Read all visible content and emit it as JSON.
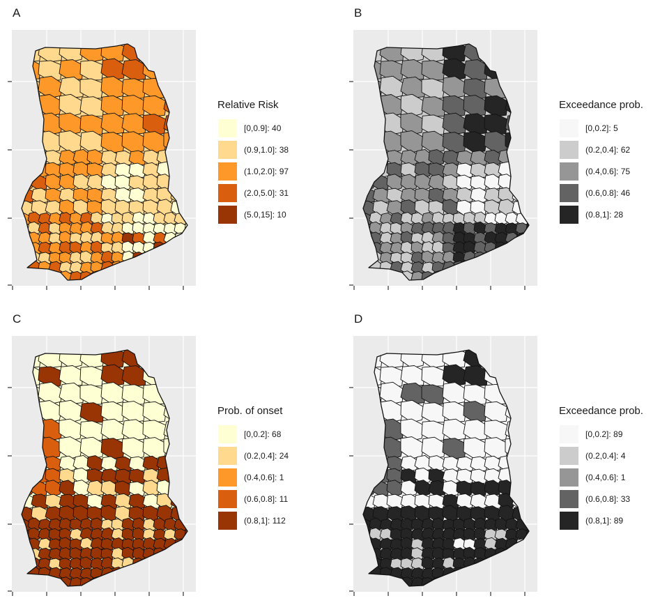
{
  "panels": [
    {
      "letter": "A",
      "legend_title": "Relative Risk",
      "palette": [
        "#ffffd4",
        "#fed98e",
        "#fe9929",
        "#d95f0e",
        "#993404"
      ],
      "items": [
        {
          "label": "[0,0.9]: 40",
          "color": "#ffffd4"
        },
        {
          "label": "(0.9,1.0]: 38",
          "color": "#fed98e"
        },
        {
          "label": "(1.0,2.0]: 97",
          "color": "#fe9929"
        },
        {
          "label": "(2.0,5.0]: 31",
          "color": "#d95f0e"
        },
        {
          "label": "(5.0,15]: 10",
          "color": "#993404"
        }
      ]
    },
    {
      "letter": "B",
      "legend_title": "Exceedance prob.",
      "palette": [
        "#f7f7f7",
        "#cccccc",
        "#969696",
        "#636363",
        "#252525"
      ],
      "items": [
        {
          "label": "[0,0.2]: 5",
          "color": "#f7f7f7"
        },
        {
          "label": "(0.2,0.4]: 62",
          "color": "#cccccc"
        },
        {
          "label": "(0.4,0.6]: 75",
          "color": "#969696"
        },
        {
          "label": "(0.6,0.8]: 46",
          "color": "#636363"
        },
        {
          "label": "(0.8,1]: 28",
          "color": "#252525"
        }
      ]
    },
    {
      "letter": "C",
      "legend_title": "Prob. of onset",
      "palette": [
        "#ffffd4",
        "#fed98e",
        "#fe9929",
        "#d95f0e",
        "#993404"
      ],
      "items": [
        {
          "label": "[0,0.2]: 68",
          "color": "#ffffd4"
        },
        {
          "label": "(0.2,0.4]: 24",
          "color": "#fed98e"
        },
        {
          "label": "(0.4,0.6]: 1",
          "color": "#fe9929"
        },
        {
          "label": "(0.6,0.8]: 11",
          "color": "#d95f0e"
        },
        {
          "label": "(0.8,1]: 112",
          "color": "#993404"
        }
      ]
    },
    {
      "letter": "D",
      "legend_title": "Exceedance prob.",
      "palette": [
        "#f7f7f7",
        "#cccccc",
        "#969696",
        "#636363",
        "#252525"
      ],
      "items": [
        {
          "label": "[0,0.2]: 89",
          "color": "#f7f7f7"
        },
        {
          "label": "(0.2,0.4]: 4",
          "color": "#cccccc"
        },
        {
          "label": "(0.4,0.6]: 1",
          "color": "#969696"
        },
        {
          "label": "(0.6,0.8]: 33",
          "color": "#636363"
        },
        {
          "label": "(0.8,1]: 89",
          "color": "#252525"
        }
      ]
    }
  ]
}
